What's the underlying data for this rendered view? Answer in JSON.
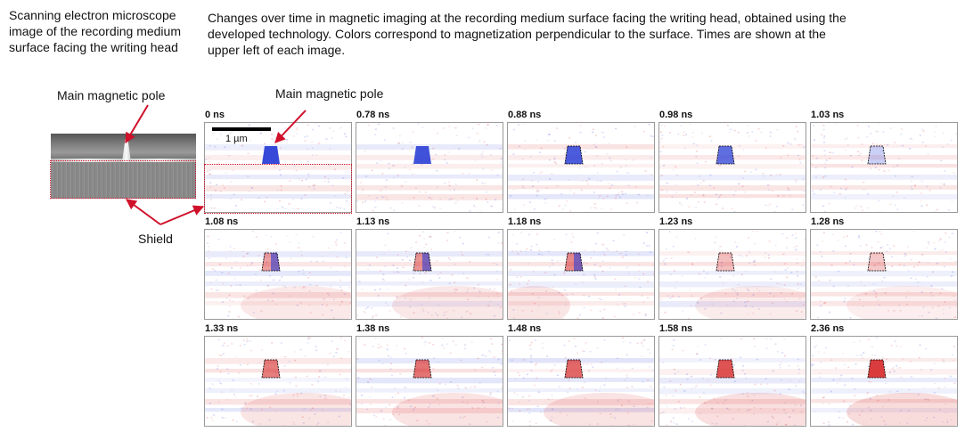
{
  "sem_caption": "Scanning electron microscope image of the recording medium surface facing the writing head",
  "main_caption": "Changes over time in magnetic imaging at the recording medium surface facing the writing head, obtained using the developed technology. Colors correspond to magnetization perpendicular to the surface. Times are shown at the upper left of each image.",
  "labels": {
    "main_pole_left": "Main magnetic pole",
    "main_pole_right": "Main magnetic pole",
    "shield": "Shield",
    "scale_bar": "1 µm"
  },
  "colors": {
    "annotation": "#d0102a",
    "positive": "#d62828",
    "negative": "#2b3fd6"
  },
  "frames": [
    {
      "time": "0 ns",
      "pole": "blue",
      "intensity": 0.95
    },
    {
      "time": "0.78 ns",
      "pole": "blue",
      "intensity": 0.9
    },
    {
      "time": "0.88 ns",
      "pole": "blue",
      "intensity": 0.85
    },
    {
      "time": "0.98 ns",
      "pole": "blue",
      "intensity": 0.75
    },
    {
      "time": "1.03 ns",
      "pole": "blue",
      "intensity": 0.25
    },
    {
      "time": "1.08 ns",
      "pole": "mixed",
      "intensity": 0.45
    },
    {
      "time": "1.13 ns",
      "pole": "mixed",
      "intensity": 0.5
    },
    {
      "time": "1.18 ns",
      "pole": "mixed",
      "intensity": 0.55
    },
    {
      "time": "1.23 ns",
      "pole": "red",
      "intensity": 0.3
    },
    {
      "time": "1.28 ns",
      "pole": "red",
      "intensity": 0.25
    },
    {
      "time": "1.33 ns",
      "pole": "red",
      "intensity": 0.6
    },
    {
      "time": "1.38 ns",
      "pole": "red",
      "intensity": 0.65
    },
    {
      "time": "1.48 ns",
      "pole": "red",
      "intensity": 0.7
    },
    {
      "time": "1.58 ns",
      "pole": "red",
      "intensity": 0.8
    },
    {
      "time": "2.36 ns",
      "pole": "red",
      "intensity": 0.9
    }
  ]
}
